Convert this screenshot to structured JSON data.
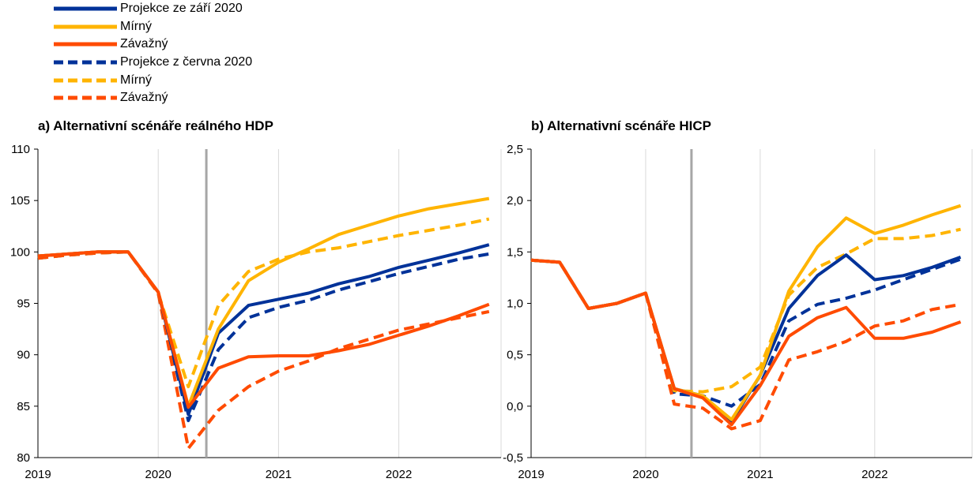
{
  "legend": {
    "items": [
      {
        "label": "Projekce ze září 2020",
        "color": "#003299",
        "dashed": false
      },
      {
        "label": "Mírný",
        "color": "#FFB400",
        "dashed": false
      },
      {
        "label": "Závažný",
        "color": "#FF4B00",
        "dashed": false
      },
      {
        "label": "Projekce z června 2020",
        "color": "#003299",
        "dashed": true
      },
      {
        "label": "Mírný",
        "color": "#FFB400",
        "dashed": true
      },
      {
        "label": "Závažný",
        "color": "#FF4B00",
        "dashed": true
      }
    ]
  },
  "chart_data": [
    {
      "type": "line",
      "title": "a) Alternativní scénáře reálného HDP",
      "xlabel": "",
      "ylabel": "",
      "xlim": [
        2019.0,
        2022.85
      ],
      "ylim": [
        80,
        110
      ],
      "y_ticks": [
        "80",
        "85",
        "90",
        "95",
        "100",
        "105",
        "110"
      ],
      "y_tick_values": [
        80,
        85,
        90,
        95,
        100,
        105,
        110
      ],
      "x_ticks": [
        "2019",
        "2020",
        "2021",
        "2022"
      ],
      "x_tick_values": [
        2019,
        2020,
        2021,
        2022
      ],
      "vline": 2020.4,
      "grid": "vertical",
      "x": [
        2019.0,
        2019.25,
        2019.5,
        2019.75,
        2020.0,
        2020.25,
        2020.5,
        2020.75,
        2021.0,
        2021.25,
        2021.5,
        2021.75,
        2022.0,
        2022.25,
        2022.5,
        2022.75
      ],
      "series": [
        {
          "name": "Projekce ze září 2020",
          "color": "#003299",
          "dashed": false,
          "values": [
            99.6,
            99.8,
            100.0,
            100.0,
            96.1,
            84.2,
            92.1,
            94.8,
            95.4,
            96.0,
            96.9,
            97.6,
            98.5,
            99.2,
            99.9,
            100.7
          ]
        },
        {
          "name": "Mírný",
          "color": "#FFB400",
          "dashed": false,
          "values": [
            99.6,
            99.8,
            100.0,
            100.0,
            96.1,
            85.0,
            92.5,
            97.2,
            99.0,
            100.3,
            101.7,
            102.6,
            103.5,
            104.2,
            104.7,
            105.2
          ]
        },
        {
          "name": "Závažný",
          "color": "#FF4B00",
          "dashed": false,
          "values": [
            99.6,
            99.8,
            100.0,
            100.0,
            96.1,
            84.9,
            88.7,
            89.8,
            89.9,
            89.9,
            90.4,
            91.0,
            91.9,
            92.8,
            93.8,
            94.9
          ]
        },
        {
          "name": "Projekce z června 2020",
          "color": "#003299",
          "dashed": true,
          "values": [
            99.4,
            99.7,
            99.9,
            100.0,
            96.0,
            83.6,
            90.5,
            93.6,
            94.6,
            95.3,
            96.3,
            97.1,
            97.9,
            98.6,
            99.3,
            99.8
          ]
        },
        {
          "name": "Mírný",
          "color": "#FFB400",
          "dashed": true,
          "values": [
            99.4,
            99.7,
            99.9,
            100.0,
            96.0,
            86.9,
            94.8,
            98.1,
            99.3,
            100.0,
            100.4,
            101.0,
            101.6,
            102.1,
            102.6,
            103.2
          ]
        },
        {
          "name": "Závažný",
          "color": "#FF4B00",
          "dashed": true,
          "values": [
            99.4,
            99.7,
            99.9,
            100.0,
            96.0,
            80.9,
            84.6,
            86.9,
            88.4,
            89.4,
            90.6,
            91.5,
            92.4,
            93.0,
            93.6,
            94.2
          ]
        }
      ]
    },
    {
      "type": "line",
      "title": "b) Alternativní scénáře HICP",
      "xlabel": "",
      "ylabel": "",
      "xlim": [
        2019.0,
        2022.85
      ],
      "ylim": [
        -0.5,
        2.5
      ],
      "y_ticks": [
        "-0,5",
        "0,0",
        "0,5",
        "1,0",
        "1,5",
        "2,0",
        "2,5"
      ],
      "y_tick_values": [
        -0.5,
        0.0,
        0.5,
        1.0,
        1.5,
        2.0,
        2.5
      ],
      "x_ticks": [
        "2019",
        "2020",
        "2021",
        "2022"
      ],
      "x_tick_values": [
        2019,
        2020,
        2021,
        2022
      ],
      "vline": 2020.4,
      "grid": "vertical",
      "x": [
        2019.0,
        2019.25,
        2019.5,
        2019.75,
        2020.0,
        2020.25,
        2020.5,
        2020.75,
        2021.0,
        2021.25,
        2021.5,
        2021.75,
        2022.0,
        2022.25,
        2022.5,
        2022.75
      ],
      "series": [
        {
          "name": "Projekce ze září 2020",
          "color": "#003299",
          "dashed": false,
          "values": [
            1.42,
            1.4,
            0.95,
            1.0,
            1.1,
            0.17,
            0.1,
            -0.15,
            0.3,
            0.95,
            1.27,
            1.47,
            1.23,
            1.27,
            1.35,
            1.45
          ]
        },
        {
          "name": "Mírný",
          "color": "#FFB400",
          "dashed": false,
          "values": [
            1.42,
            1.4,
            0.95,
            1.0,
            1.1,
            0.17,
            0.1,
            -0.13,
            0.3,
            1.12,
            1.55,
            1.83,
            1.68,
            1.76,
            1.86,
            1.95
          ]
        },
        {
          "name": "Závažný",
          "color": "#FF4B00",
          "dashed": false,
          "values": [
            1.42,
            1.4,
            0.95,
            1.0,
            1.1,
            0.17,
            0.08,
            -0.18,
            0.2,
            0.68,
            0.86,
            0.96,
            0.66,
            0.66,
            0.72,
            0.82
          ]
        },
        {
          "name": "Projekce z června 2020",
          "color": "#003299",
          "dashed": true,
          "values": [
            1.42,
            1.4,
            0.95,
            1.0,
            1.1,
            0.12,
            0.1,
            0.0,
            0.21,
            0.83,
            0.99,
            1.05,
            1.13,
            1.23,
            1.33,
            1.43
          ]
        },
        {
          "name": "Mírný",
          "color": "#FFB400",
          "dashed": true,
          "values": [
            1.42,
            1.4,
            0.95,
            1.0,
            1.1,
            0.15,
            0.14,
            0.19,
            0.38,
            1.08,
            1.35,
            1.48,
            1.63,
            1.63,
            1.66,
            1.72
          ]
        },
        {
          "name": "Závažný",
          "color": "#FF4B00",
          "dashed": true,
          "values": [
            1.42,
            1.4,
            0.95,
            1.0,
            1.1,
            0.02,
            -0.02,
            -0.22,
            -0.14,
            0.45,
            0.53,
            0.63,
            0.78,
            0.83,
            0.94,
            0.99
          ]
        }
      ]
    }
  ]
}
